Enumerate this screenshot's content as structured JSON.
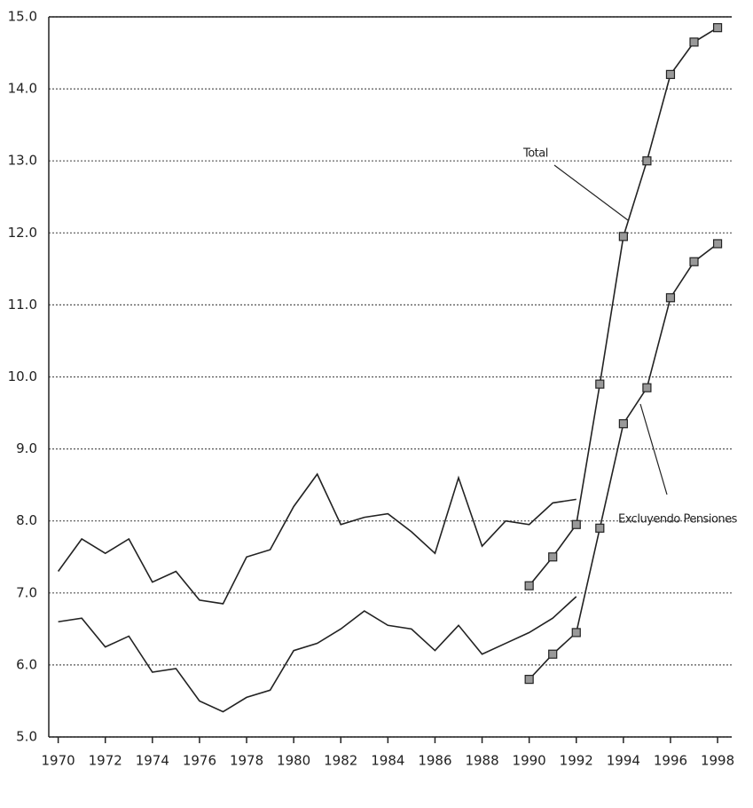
{
  "chart_data": {
    "type": "line",
    "xlim": [
      1969.6,
      1998.6
    ],
    "xticks": [
      1970,
      1972,
      1974,
      1976,
      1978,
      1980,
      1982,
      1984,
      1986,
      1988,
      1990,
      1992,
      1994,
      1996,
      1998
    ],
    "ylim": [
      5,
      15
    ],
    "yticks": [
      {
        "value": 5,
        "label": "5.0"
      },
      {
        "value": 6,
        "label": "6.0"
      },
      {
        "value": 7,
        "label": "7.0"
      },
      {
        "value": 8,
        "label": "8.0"
      },
      {
        "value": 9,
        "label": "9.0"
      },
      {
        "value": 10,
        "label": "10.0"
      },
      {
        "value": 11,
        "label": "11.0"
      },
      {
        "value": 12,
        "label": "12.0"
      },
      {
        "value": 13,
        "label": "13.0"
      },
      {
        "value": 14,
        "label": "14.0"
      },
      {
        "value": 15,
        "label": "15.0"
      }
    ],
    "grid": true,
    "series": [
      {
        "color": "#222222",
        "markers": false,
        "x": [
          1970,
          1971,
          1972,
          1973,
          1974,
          1975,
          1976,
          1977,
          1978,
          1979,
          1980,
          1981,
          1982,
          1983,
          1984,
          1985,
          1986,
          1987,
          1988,
          1989,
          1990,
          1991,
          1992
        ],
        "values": [
          7.3,
          7.75,
          7.55,
          7.75,
          7.15,
          7.3,
          6.9,
          6.85,
          7.5,
          7.6,
          8.2,
          8.65,
          7.95,
          8.05,
          8.1,
          7.85,
          7.55,
          8.6,
          7.65,
          8.0,
          7.95,
          8.25,
          8.3
        ]
      },
      {
        "color": "#222222",
        "markers": false,
        "x": [
          1970,
          1971,
          1972,
          1973,
          1974,
          1975,
          1976,
          1977,
          1978,
          1979,
          1980,
          1981,
          1982,
          1983,
          1984,
          1985,
          1986,
          1987,
          1988,
          1989,
          1990,
          1991,
          1992
        ],
        "values": [
          6.6,
          6.65,
          6.25,
          6.4,
          5.9,
          5.95,
          5.5,
          5.35,
          5.55,
          5.65,
          6.2,
          6.3,
          6.5,
          6.75,
          6.55,
          6.5,
          6.2,
          6.55,
          6.15,
          6.3,
          6.45,
          6.65,
          6.95
        ]
      },
      {
        "name": "Total",
        "color": "#222222",
        "markers": true,
        "x": [
          1990,
          1991,
          1992,
          1993,
          1994,
          1995,
          1996,
          1997,
          1998
        ],
        "values": [
          7.1,
          7.5,
          7.95,
          9.9,
          11.95,
          13.0,
          14.2,
          14.65,
          14.85
        ]
      },
      {
        "name": "Excluyendo Pensiones",
        "color": "#222222",
        "markers": true,
        "x": [
          1990,
          1991,
          1992,
          1993,
          1994,
          1995,
          1996,
          1997,
          1998
        ],
        "values": [
          5.8,
          6.15,
          6.45,
          7.9,
          9.35,
          9.85,
          11.1,
          11.6,
          11.85
        ]
      }
    ]
  }
}
